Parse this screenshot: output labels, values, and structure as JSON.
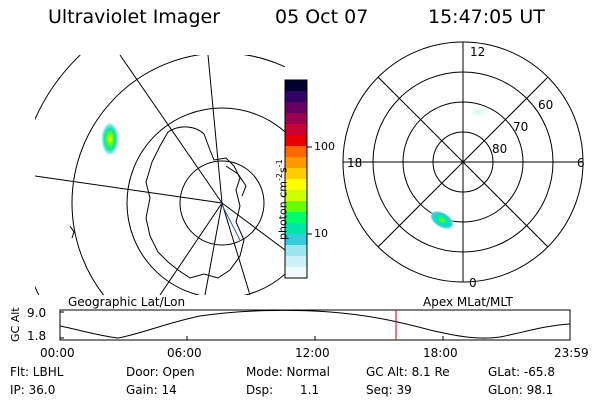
{
  "header": {
    "title": "Ultraviolet Imager",
    "date": "05 Oct 07",
    "time": "15:47:05 UT"
  },
  "left_panel": {
    "label": "Geographic Lat/Lon"
  },
  "right_panel": {
    "label": "Apex MLat/MLT",
    "mlt_labels": {
      "top": "12",
      "left": "18",
      "right": "6",
      "bottom": "0"
    },
    "mlat_labels": [
      "60",
      "70",
      "80"
    ]
  },
  "colorbar": {
    "unit_label": "photon cm",
    "unit_sup1": "-2",
    "unit_mid": "s",
    "unit_sup2": "-1",
    "ticks": [
      "100",
      "10"
    ],
    "colors": [
      "#000033",
      "#330066",
      "#660066",
      "#99004d",
      "#cc0033",
      "#e60000",
      "#ff6600",
      "#ff9900",
      "#ffcc00",
      "#ffff00",
      "#ccff00",
      "#66ff00",
      "#00ff66",
      "#00e6aa",
      "#33ccdd",
      "#99e6ee",
      "#ccf2f6",
      "#eefafc"
    ]
  },
  "alt_plot": {
    "ylabel": "GC Alt",
    "ymax": "9.0",
    "ymin": "1.8",
    "xticks": [
      "00:00",
      "06:00",
      "12:00",
      "18:00",
      "23:59"
    ],
    "marker_color": "#cc0000"
  },
  "info": {
    "filter": "Flt: LBHL",
    "ip": "IP: 36.0",
    "door": "Door: Open",
    "gain": "Gain: 14",
    "mode": "Mode: Normal",
    "dsp_label": "Dsp:",
    "dsp_value": "1.1",
    "gcalt": "GC Alt: 8.1 Re",
    "seq": "Seq: 39",
    "glat": "GLat: -65.8",
    "glon": "GLon: 98.1"
  }
}
